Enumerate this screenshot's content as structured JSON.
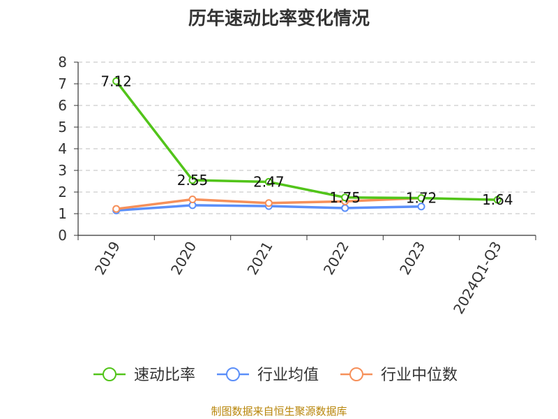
{
  "chart_data": {
    "type": "line",
    "title": "历年速动比率变化情况",
    "categories": [
      "2019",
      "2020",
      "2021",
      "2022",
      "2023",
      "2024Q1-Q3"
    ],
    "ylim": [
      0,
      8
    ],
    "yticks": [
      0,
      1,
      2,
      3,
      4,
      5,
      6,
      7,
      8
    ],
    "grid": true,
    "legend_position": "bottom",
    "series": [
      {
        "name": "速动比率",
        "color": "#52c41a",
        "values": [
          7.12,
          2.55,
          2.47,
          1.75,
          1.72,
          1.64
        ],
        "labels": [
          "7.12",
          "2.55",
          "2.47",
          "1.75",
          "1.72",
          "1.64"
        ]
      },
      {
        "name": "行业均值",
        "color": "#5b8ff9",
        "values": [
          1.15,
          1.39,
          1.35,
          1.26,
          1.33,
          null
        ]
      },
      {
        "name": "行业中位数",
        "color": "#f6905a",
        "values": [
          1.22,
          1.66,
          1.49,
          1.57,
          1.72,
          null
        ]
      }
    ]
  },
  "source": "制图数据来自恒生聚源数据库"
}
